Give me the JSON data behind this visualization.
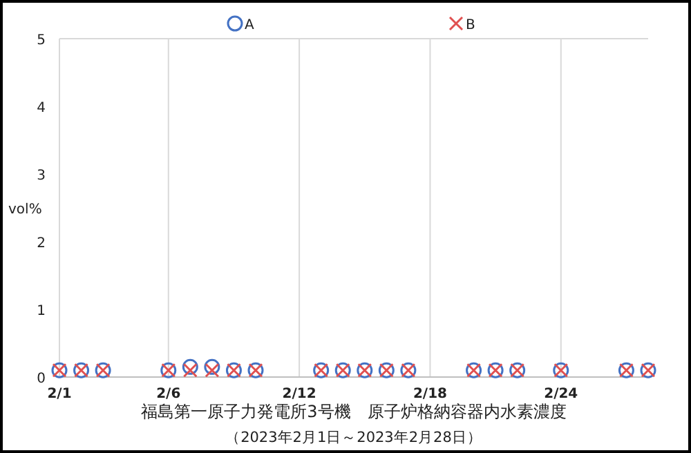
{
  "chart_data": {
    "type": "scatter",
    "title": "福島第一原子力発電所3号機　原子炉格納容器内水素濃度",
    "subtitle": "（2023年2月1日～2023年2月28日）",
    "ylabel": "vol%",
    "x": [
      "2023-02-01",
      "2023-02-02",
      "2023-02-03",
      "2023-02-06",
      "2023-02-07",
      "2023-02-08",
      "2023-02-09",
      "2023-02-10",
      "2023-02-13",
      "2023-02-14",
      "2023-02-15",
      "2023-02-16",
      "2023-02-17",
      "2023-02-20",
      "2023-02-21",
      "2023-02-22",
      "2023-02-24",
      "2023-02-27",
      "2023-02-28"
    ],
    "series": [
      {
        "name": "A",
        "color": "#4472c4",
        "marker": "circle",
        "values": [
          0.1,
          0.1,
          0.1,
          0.1,
          0.15,
          0.15,
          0.1,
          0.1,
          0.1,
          0.1,
          0.1,
          0.1,
          0.1,
          0.1,
          0.1,
          0.1,
          0.1,
          0.1,
          0.1
        ]
      },
      {
        "name": "B",
        "color": "#e05050",
        "marker": "cross",
        "values": [
          0.1,
          0.1,
          0.1,
          0.1,
          0.1,
          0.1,
          0.1,
          0.1,
          0.1,
          0.1,
          0.1,
          0.1,
          0.1,
          0.1,
          0.1,
          0.1,
          0.1,
          0.1,
          0.1
        ]
      }
    ],
    "xlim": [
      "2023-02-01",
      "2023-02-28"
    ],
    "xticks": [
      {
        "value": "2023-02-01",
        "label": "2/1"
      },
      {
        "value": "2023-02-06",
        "label": "2/6"
      },
      {
        "value": "2023-02-12",
        "label": "2/12"
      },
      {
        "value": "2023-02-18",
        "label": "2/18"
      },
      {
        "value": "2023-02-24",
        "label": "2/24"
      }
    ],
    "ylim": [
      0,
      5
    ],
    "yticks": [
      0,
      1,
      2,
      3,
      4,
      5
    ],
    "grid": "x",
    "legend": "top"
  }
}
